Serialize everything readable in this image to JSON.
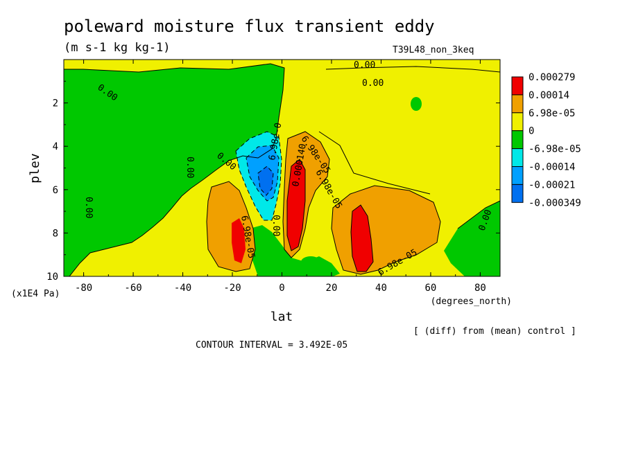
{
  "chart_data": {
    "type": "heatmap",
    "title": "poleward moisture flux transient eddy",
    "subtitle": "(m s-1 kg kg-1)",
    "run_label": "T39L48_non_3keq",
    "xlabel": "lat",
    "x_units": "(degrees_north)",
    "ylabel": "plev",
    "y_units": "(x1E4 Pa)",
    "xlim": [
      -88,
      88
    ],
    "ylim": [
      0,
      10
    ],
    "y_inverted": true,
    "x_ticks": [
      "-80",
      "-60",
      "-40",
      "-20",
      "0",
      "20",
      "40",
      "60",
      "80"
    ],
    "y_ticks": [
      "2",
      "4",
      "6",
      "8",
      "10"
    ],
    "note_diff": "[ (diff) from (mean) control ]",
    "contour_interval": "CONTOUR INTERVAL = 3.492E-05",
    "legend": {
      "levels": [
        "0.000279",
        "0.00014",
        "6.98e-05",
        "0",
        "-6.98e-05",
        "-0.00014",
        "-0.00021",
        "-0.000349"
      ],
      "colors": [
        "#f00000",
        "#f0a000",
        "#f0f000",
        "#00c800",
        "#00e8e8",
        "#00a0ff",
        "#0070f0"
      ]
    },
    "contour_labels": [
      "0.00",
      "0.00",
      "0.00",
      "0.00",
      "0.00",
      "0.00",
      "0.00",
      "0.00",
      "6.98e-05",
      "6.98e-05",
      "6.98e-05",
      "6.98e-05",
      "6.98e-0",
      "0.000140"
    ],
    "features": [
      {
        "kind": "negative_minimum",
        "lat": -7,
        "plev": 5.8,
        "approx_value": -0.00021
      },
      {
        "kind": "positive_maximum",
        "lat": 6,
        "plev": 6.3,
        "approx_value": 0.000279
      },
      {
        "kind": "positive_maximum",
        "lat": 32,
        "plev": 8.6,
        "approx_value": 0.000279
      },
      {
        "kind": "positive_maximum",
        "lat": -17,
        "plev": 8.5,
        "approx_value": 0.000279
      }
    ]
  }
}
